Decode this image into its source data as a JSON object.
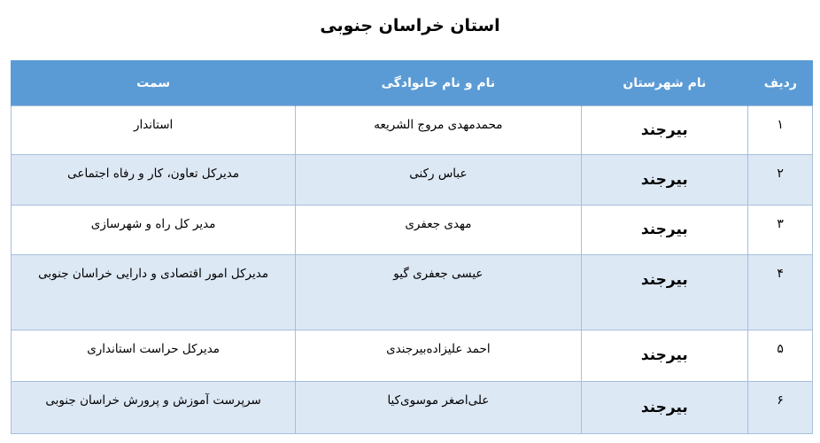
{
  "title": "استان خراسان جنوبی",
  "table": {
    "headers": {
      "row": "ردیف",
      "city": "نام شهرستان",
      "name": "نام و نام خانوادگی",
      "position": "سمت"
    },
    "rows": [
      {
        "row": "۱",
        "city": "بیرجند",
        "name": "محمدمهدی مروج الشریعه",
        "position": "استاندار"
      },
      {
        "row": "۲",
        "city": "بیرجند",
        "name": "عباس رکنی",
        "position": "مدیرکل تعاون، کار و رفاه اجتماعی"
      },
      {
        "row": "۳",
        "city": "بیرجند",
        "name": "مهدی جعفری",
        "position": "مدیر کل راه و شهرسازی"
      },
      {
        "row": "۴",
        "city": "بیرجند",
        "name": "عیسی جعفری گیو",
        "position": "مدیرکل امور اقتصادی و دارایی خراسان جنوبی"
      },
      {
        "row": "۵",
        "city": "بیرجند",
        "name": "احمد علیزاده‌بیرجندی",
        "position": "مدیرکل حراست استانداری"
      },
      {
        "row": "۶",
        "city": "بیرجند",
        "name": "علی‌اصغر موسوی‌کیا",
        "position": "سرپرست آموزش و پرورش خراسان جنوبی"
      }
    ]
  },
  "colors": {
    "header": "#5b9bd5",
    "stripe": "#dde8f5",
    "border": "#a6bfdc"
  }
}
